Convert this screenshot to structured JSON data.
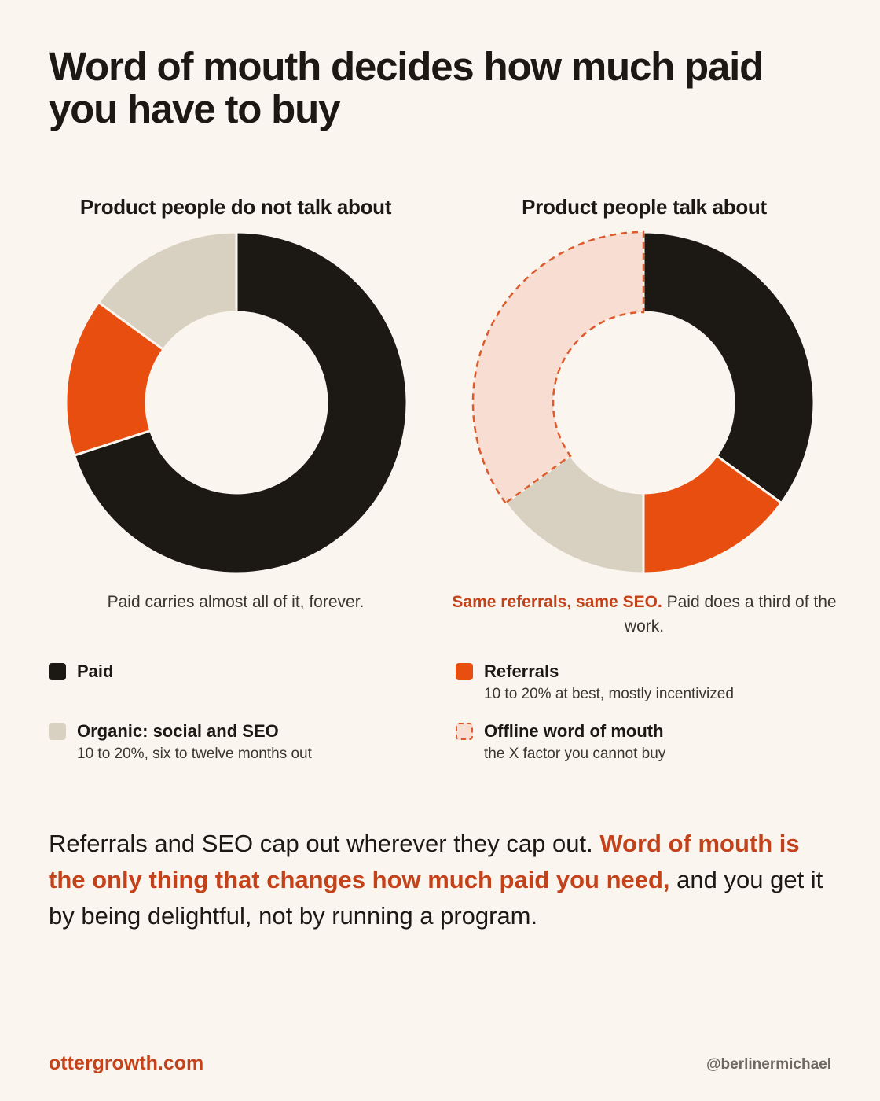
{
  "page": {
    "title": "Word of mouth decides how much paid you have to buy",
    "footer_site": "ottergrowth.com",
    "footer_handle": "@berlinermichael"
  },
  "colors": {
    "background": "#FAF5EF",
    "paid": "#1C1915",
    "referrals": "#E84E0F",
    "organic": "#D8D1C1",
    "offline_fill": "#F8DED2",
    "offline_stroke": "#DC5A2B",
    "accent_text": "#C3421A"
  },
  "charts": {
    "left": {
      "title": "Product people do not talk about",
      "caption": "Paid carries almost all of it, forever."
    },
    "right": {
      "title": "Product people talk about",
      "caption_highlight": "Same referrals, same SEO.",
      "caption_rest": " Paid does a third of the work."
    }
  },
  "legend": {
    "paid": {
      "label": "Paid",
      "desc": ""
    },
    "organic": {
      "label": "Organic: social and SEO",
      "desc": "10 to 20%, six to twelve months out"
    },
    "referrals": {
      "label": "Referrals",
      "desc": "10 to 20% at best, mostly incentivized"
    },
    "offline": {
      "label": "Offline word of mouth",
      "desc": "the X factor you cannot buy"
    }
  },
  "body": {
    "text_before": "Referrals and SEO cap out wherever they cap out. ",
    "text_highlight": "Word of mouth is the only thing that changes how much paid you need,",
    "text_after": " and you get it by being delightful, not by running a program."
  },
  "chart_data": [
    {
      "type": "pie",
      "style": "donut",
      "title": "Product people do not talk about",
      "categories": [
        "Paid",
        "Referrals",
        "Organic: social and SEO"
      ],
      "values": [
        70,
        15,
        15
      ],
      "start": "top, clockwise"
    },
    {
      "type": "pie",
      "style": "donut",
      "title": "Product people talk about",
      "categories": [
        "Paid",
        "Referrals",
        "Organic: social and SEO",
        "Offline word of mouth"
      ],
      "values": [
        35,
        15,
        15,
        35
      ],
      "start": "top, clockwise",
      "dashed_outline": [
        "Offline word of mouth"
      ]
    }
  ]
}
